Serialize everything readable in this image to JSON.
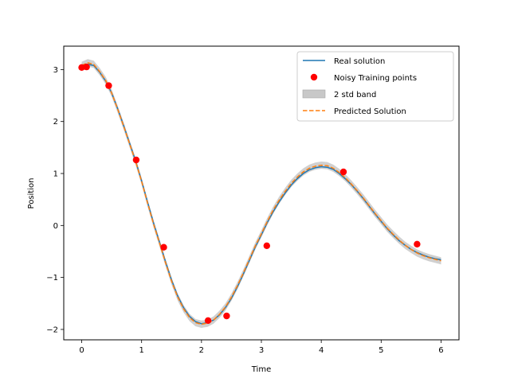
{
  "chart_data": {
    "type": "line",
    "title": "",
    "xlabel": "Time",
    "ylabel": "Position",
    "xlim": [
      -0.3,
      6.3
    ],
    "ylim": [
      -2.2,
      3.45
    ],
    "grid": false,
    "legend_position": "top-right",
    "x_ticks": [
      {
        "value": 0,
        "label": "0"
      },
      {
        "value": 1,
        "label": "1"
      },
      {
        "value": 2,
        "label": "2"
      },
      {
        "value": 3,
        "label": "3"
      },
      {
        "value": 4,
        "label": "4"
      },
      {
        "value": 5,
        "label": "5"
      },
      {
        "value": 6,
        "label": "6"
      }
    ],
    "y_ticks": [
      {
        "value": -2,
        "label": "−2"
      },
      {
        "value": -1,
        "label": "−1"
      },
      {
        "value": 0,
        "label": "0"
      },
      {
        "value": 1,
        "label": "1"
      },
      {
        "value": 2,
        "label": "2"
      },
      {
        "value": 3,
        "label": "3"
      }
    ],
    "series": [
      {
        "name": "Real solution",
        "kind": "line",
        "color": "#1f77b4",
        "x": [
          0,
          0.1,
          0.2,
          0.3,
          0.4,
          0.5,
          0.6,
          0.7,
          0.8,
          0.9,
          1.0,
          1.1,
          1.2,
          1.3,
          1.4,
          1.5,
          1.6,
          1.7,
          1.8,
          1.9,
          2.0,
          2.1,
          2.2,
          2.3,
          2.4,
          2.5,
          2.6,
          2.7,
          2.8,
          2.9,
          3.0,
          3.1,
          3.2,
          3.3,
          3.4,
          3.5,
          3.6,
          3.7,
          3.8,
          3.9,
          4.0,
          4.1,
          4.2,
          4.3,
          4.4,
          4.5,
          4.6,
          4.7,
          4.8,
          4.9,
          5.0,
          5.1,
          5.2,
          5.3,
          5.4,
          5.5,
          5.6,
          5.7,
          5.8,
          5.9,
          6.0
        ],
        "y": [
          3.06,
          3.1,
          3.08,
          2.95,
          2.78,
          2.55,
          2.25,
          1.92,
          1.58,
          1.24,
          0.86,
          0.45,
          0.05,
          -0.32,
          -0.7,
          -1.05,
          -1.35,
          -1.58,
          -1.75,
          -1.85,
          -1.89,
          -1.87,
          -1.82,
          -1.72,
          -1.58,
          -1.4,
          -1.18,
          -0.93,
          -0.67,
          -0.41,
          -0.18,
          0.06,
          0.27,
          0.46,
          0.63,
          0.78,
          0.9,
          1.0,
          1.07,
          1.11,
          1.13,
          1.12,
          1.08,
          1.0,
          0.9,
          0.79,
          0.66,
          0.52,
          0.37,
          0.22,
          0.08,
          -0.06,
          -0.18,
          -0.29,
          -0.38,
          -0.46,
          -0.52,
          -0.57,
          -0.61,
          -0.64,
          -0.66
        ]
      },
      {
        "name": "Noisy Training points",
        "kind": "scatter",
        "color": "#ff0000",
        "x": [
          0.0,
          0.08,
          0.45,
          0.91,
          1.37,
          2.11,
          2.42,
          3.09,
          4.37,
          5.6
        ],
        "y": [
          3.04,
          3.05,
          2.69,
          1.26,
          -0.42,
          -1.83,
          -1.74,
          -0.39,
          1.03,
          -0.36
        ]
      },
      {
        "name": "2 std band",
        "kind": "band",
        "color": "#c8c8c8",
        "half_width": 0.07
      },
      {
        "name": "Predicted Solution",
        "kind": "dashed-line",
        "color": "#ff7f0e",
        "x": [
          0,
          0.1,
          0.2,
          0.3,
          0.4,
          0.5,
          0.6,
          0.7,
          0.8,
          0.9,
          1.0,
          1.1,
          1.2,
          1.3,
          1.4,
          1.5,
          1.6,
          1.7,
          1.8,
          1.9,
          2.0,
          2.1,
          2.2,
          2.3,
          2.4,
          2.5,
          2.6,
          2.7,
          2.8,
          2.9,
          3.0,
          3.1,
          3.2,
          3.3,
          3.4,
          3.5,
          3.6,
          3.7,
          3.8,
          3.9,
          4.0,
          4.1,
          4.2,
          4.3,
          4.4,
          4.5,
          4.6,
          4.7,
          4.8,
          4.9,
          5.0,
          5.1,
          5.2,
          5.3,
          5.4,
          5.5,
          5.6,
          5.7,
          5.8,
          5.9,
          6.0
        ],
        "y": [
          3.08,
          3.13,
          3.1,
          2.96,
          2.79,
          2.55,
          2.24,
          1.91,
          1.57,
          1.23,
          0.85,
          0.43,
          0.03,
          -0.34,
          -0.72,
          -1.07,
          -1.37,
          -1.6,
          -1.77,
          -1.87,
          -1.9,
          -1.88,
          -1.82,
          -1.71,
          -1.57,
          -1.38,
          -1.16,
          -0.91,
          -0.65,
          -0.39,
          -0.16,
          0.08,
          0.3,
          0.49,
          0.66,
          0.81,
          0.93,
          1.03,
          1.1,
          1.14,
          1.16,
          1.15,
          1.1,
          1.02,
          0.92,
          0.8,
          0.67,
          0.53,
          0.38,
          0.23,
          0.09,
          -0.05,
          -0.17,
          -0.28,
          -0.38,
          -0.46,
          -0.53,
          -0.58,
          -0.62,
          -0.65,
          -0.68
        ]
      }
    ]
  }
}
